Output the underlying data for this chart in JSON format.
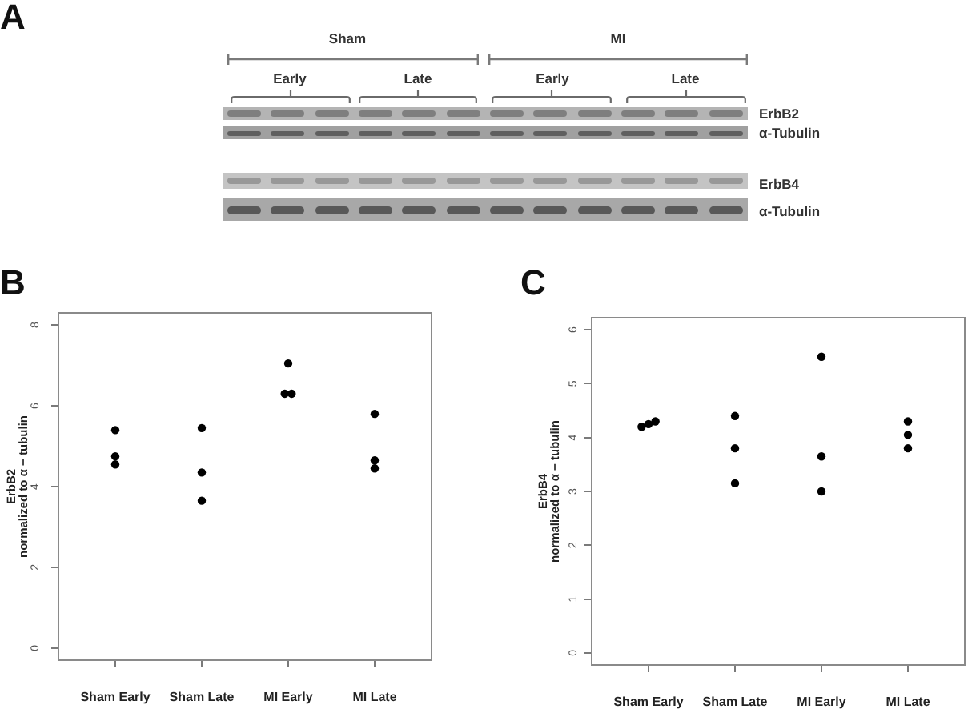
{
  "chart_data": [
    {
      "type": "other",
      "title": "A",
      "annotations": [
        "Sham",
        "MI",
        "Early",
        "Late",
        "Early",
        "Late",
        "ErbB2",
        "α-Tubulin",
        "ErbB4",
        "α-Tubulin"
      ]
    },
    {
      "type": "scatter",
      "title": "B",
      "ylabel": "ErbB2\nnormalized to α − tubulin",
      "categories": [
        "Sham Early",
        "Sham Late",
        "MI Early",
        "MI Late"
      ],
      "series": [
        {
          "color": "#000000",
          "x": [
            "Sham Early",
            "Sham Early",
            "Sham Early",
            "Sham Late",
            "Sham Late",
            "Sham Late",
            "MI Early",
            "MI Early",
            "MI Early",
            "MI Late",
            "MI Late",
            "MI Late"
          ],
          "values": [
            5.4,
            4.75,
            4.55,
            5.45,
            4.35,
            3.65,
            7.05,
            6.3,
            6.3,
            5.8,
            4.65,
            4.45
          ]
        }
      ],
      "ylim": [
        -0.32,
        8.32
      ],
      "yticks": [
        0,
        2,
        4,
        6,
        8
      ],
      "marker": "circle"
    },
    {
      "type": "scatter",
      "title": "C",
      "ylabel": "ErbB4\nnormalized to α − tubulin",
      "categories": [
        "Sham Early",
        "Sham Late",
        "MI Early",
        "MI Late"
      ],
      "series": [
        {
          "color": "#000000",
          "x": [
            "Sham Early",
            "Sham Early",
            "Sham Early",
            "Sham Late",
            "Sham Late",
            "Sham Late",
            "MI Early",
            "MI Early",
            "MI Early",
            "MI Late",
            "MI Late",
            "MI Late"
          ],
          "values": [
            4.2,
            4.25,
            4.3,
            4.4,
            3.8,
            3.15,
            5.5,
            3.65,
            3.0,
            4.3,
            4.05,
            3.8
          ]
        }
      ],
      "ylim": [
        -0.24,
        6.24
      ],
      "yticks": [
        0,
        1,
        2,
        3,
        4,
        5,
        6
      ],
      "marker": "circle"
    }
  ]
}
